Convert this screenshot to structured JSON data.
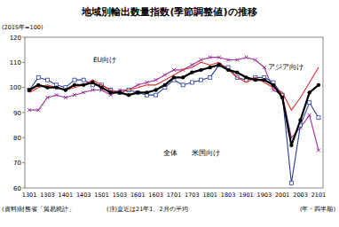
{
  "chart_data": {
    "type": "line",
    "title": "地域別輸出数量指数(季節調整値)の推移",
    "y_label": "(2015年=100)",
    "x_label": "(年・四半期)",
    "source": "(資料)財務省「貿易統計」",
    "note": "(注)直近は21年1、2月の平均",
    "categories": [
      "1301",
      null,
      "1303",
      null,
      "1401",
      null,
      "1403",
      null,
      "1501",
      null,
      "1503",
      null,
      "1601",
      null,
      "1603",
      null,
      "1701",
      null,
      "1703",
      null,
      "1801",
      null,
      "1803",
      null,
      "1901",
      null,
      "1903",
      null,
      "2001",
      null,
      "2003",
      null,
      "2101"
    ],
    "ylim": [
      60,
      120
    ],
    "yticks": [
      60,
      70,
      80,
      90,
      100,
      110,
      120
    ],
    "grid": false,
    "series": [
      {
        "name": "全体",
        "color": "#000000",
        "marker": "circle",
        "values": [
          99,
          101,
          100,
          100,
          99,
          101,
          101,
          102,
          100,
          98,
          98,
          97,
          98,
          98,
          99,
          101,
          104,
          104,
          106,
          107,
          108,
          109,
          107,
          106,
          104,
          103,
          103,
          101,
          96,
          77,
          87,
          98,
          101
        ]
      },
      {
        "name": "米国向け",
        "color": "#2a3f9c",
        "marker": "square",
        "values": [
          99,
          104,
          103,
          101,
          100,
          103,
          103,
          101,
          101,
          99,
          98,
          99,
          98,
          97,
          97,
          100,
          103,
          101,
          102,
          103,
          104,
          109,
          108,
          104,
          103,
          104,
          104,
          102,
          97,
          62,
          85,
          94,
          88
        ]
      },
      {
        "name": "EU向け",
        "color": "#993399",
        "marker": "x",
        "values": [
          91,
          91,
          96,
          97,
          96,
          97,
          98,
          99,
          99,
          97,
          99,
          99,
          101,
          102,
          103,
          105,
          107,
          107,
          109,
          111,
          112,
          112,
          111,
          111,
          112,
          111,
          108,
          99,
          97,
          80,
          84,
          89,
          75
        ]
      },
      {
        "name": "アジア向け",
        "color": "#e0302c",
        "marker": "none",
        "values": [
          98,
          100,
          101,
          100,
          99,
          100,
          101,
          103,
          101,
          99,
          98,
          99,
          100,
          101,
          101,
          103,
          105,
          107,
          108,
          110,
          109,
          110,
          107,
          104,
          102,
          104,
          102,
          100,
          98,
          91,
          96,
          102,
          108
        ]
      }
    ]
  }
}
